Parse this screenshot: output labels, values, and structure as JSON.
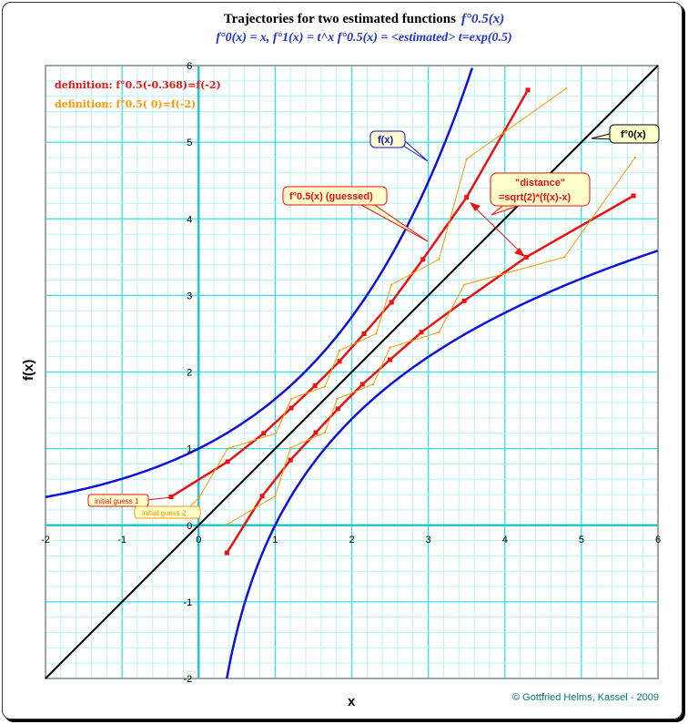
{
  "chart_data": {
    "type": "line",
    "title": "Trajectories for two estimated functions",
    "title_fn": "f°0.5(x)",
    "subtitle": "f°0(x) = x, f°1(x) = t^x  f°0.5(x) = <estimated>  t=exp(0.5)",
    "xlabel": "x",
    "ylabel": "f(x)",
    "xlim": [
      -2,
      6
    ],
    "ylim": [
      -2,
      6
    ],
    "grid": true,
    "x_ticks": [
      "-2",
      "-1",
      "0",
      "1",
      "2",
      "3",
      "4",
      "5",
      "6"
    ],
    "y_ticks": [
      "-2",
      "-1",
      "0",
      "1",
      "2",
      "3",
      "4",
      "5",
      "6"
    ],
    "definitions": [
      {
        "text": "definition: f°0.5(-0.368)=f(-2)",
        "color": "#ee1111"
      },
      {
        "text": "definition: f°0.5(  0)=f(-2)",
        "color": "#ff9900"
      }
    ],
    "series": [
      {
        "name": "f(x) = exp(0.5x)",
        "color": "#1111dd",
        "fn": "exp"
      },
      {
        "name": "inverse f(x) = 2 ln x",
        "color": "#1111dd",
        "fn": "log"
      },
      {
        "name": "f°0(x)",
        "color": "#000000",
        "fn": "identity"
      },
      {
        "name": "f°0.5(x) (guessed) trajectory 1",
        "color": "#ee1111",
        "markers": true,
        "points": [
          [
            -0.36,
            0.37
          ],
          [
            0.38,
            0.83
          ],
          [
            0.85,
            1.2
          ],
          [
            1.21,
            1.53
          ],
          [
            1.52,
            1.82
          ],
          [
            1.84,
            2.14
          ],
          [
            2.16,
            2.5
          ],
          [
            2.52,
            2.91
          ],
          [
            2.93,
            3.47
          ],
          [
            3.5,
            4.28
          ],
          [
            4.3,
            5.68
          ]
        ]
      },
      {
        "name": "trajectory 1 mirrored",
        "color": "#ee1111",
        "markers": true,
        "mirror_of": 3
      },
      {
        "name": "trajectory 2",
        "color": "#ff9900",
        "points": [
          [
            0.01,
            0.37
          ],
          [
            0.38,
            1.0
          ],
          [
            1.01,
            1.2
          ],
          [
            1.21,
            1.65
          ],
          [
            1.65,
            1.81
          ],
          [
            1.84,
            2.28
          ],
          [
            2.32,
            2.5
          ],
          [
            2.52,
            3.14
          ],
          [
            3.14,
            3.47
          ],
          [
            3.5,
            4.78
          ],
          [
            4.8,
            5.7
          ]
        ]
      },
      {
        "name": "trajectory 2 mirrored",
        "color": "#ff9900",
        "mirror_of": 5
      }
    ],
    "annotations": {
      "fx": "f(x)",
      "f0": "f°0(x)",
      "guessed": "f°0.5(x) (guessed)",
      "distance_1": "\"distance\"",
      "distance_2": "=sqrt(2)*(f(x)-x)",
      "guess1": "initial guess 1",
      "guess2": "initial guess 2"
    }
  },
  "footer": "© Gottfried Helms, Kassel - 2009"
}
